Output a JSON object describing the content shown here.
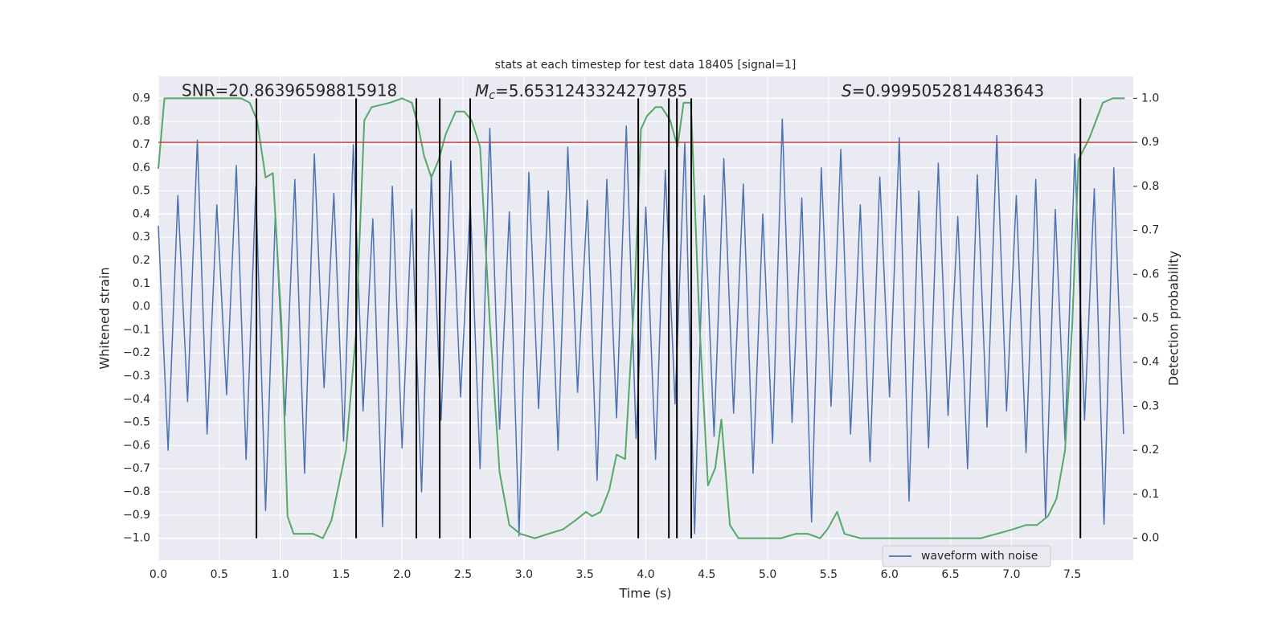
{
  "chart_data": {
    "type": "line",
    "title": "stats at each timestep for test data 18405 [signal=1]",
    "xlabel": "Time (s)",
    "ylabel": "Whitened strain",
    "y2label": "Detection probability",
    "annotations": [
      {
        "text": "SNR=20.86396598815918"
      },
      {
        "symbol": "M",
        "subscript": "c",
        "text": "=5.6531243324279785"
      },
      {
        "symbol": "S",
        "text": "=0.9995052814483643"
      }
    ],
    "xlim": [
      0,
      8
    ],
    "ylim": [
      -1.095,
      0.995
    ],
    "y2lim": [
      -0.05,
      1.05
    ],
    "xticks": [
      {
        "value": 0,
        "label": "0.0"
      },
      {
        "value": 0.5,
        "label": "0.5"
      },
      {
        "value": 1,
        "label": "1.0"
      },
      {
        "value": 1.5,
        "label": "1.5"
      },
      {
        "value": 2,
        "label": "2.0"
      },
      {
        "value": 2.5,
        "label": "2.5"
      },
      {
        "value": 3,
        "label": "3.0"
      },
      {
        "value": 3.5,
        "label": "3.5"
      },
      {
        "value": 4,
        "label": "4.0"
      },
      {
        "value": 4.5,
        "label": "4.5"
      },
      {
        "value": 5,
        "label": "5.0"
      },
      {
        "value": 5.5,
        "label": "5.5"
      },
      {
        "value": 6,
        "label": "6.0"
      },
      {
        "value": 6.5,
        "label": "6.5"
      },
      {
        "value": 7,
        "label": "7.0"
      },
      {
        "value": 7.5,
        "label": "7.5"
      }
    ],
    "yticks": [
      {
        "value": -1.0,
        "label": "−1.0"
      },
      {
        "value": -0.9,
        "label": "−0.9"
      },
      {
        "value": -0.8,
        "label": "−0.8"
      },
      {
        "value": -0.7,
        "label": "−0.7"
      },
      {
        "value": -0.6,
        "label": "−0.6"
      },
      {
        "value": -0.5,
        "label": "−0.5"
      },
      {
        "value": -0.4,
        "label": "−0.4"
      },
      {
        "value": -0.3,
        "label": "−0.3"
      },
      {
        "value": -0.2,
        "label": "−0.2"
      },
      {
        "value": -0.1,
        "label": "−0.1"
      },
      {
        "value": 0,
        "label": "0.0"
      },
      {
        "value": 0.1,
        "label": "0.1"
      },
      {
        "value": 0.2,
        "label": "0.2"
      },
      {
        "value": 0.3,
        "label": "0.3"
      },
      {
        "value": 0.4,
        "label": "0.4"
      },
      {
        "value": 0.5,
        "label": "0.5"
      },
      {
        "value": 0.6,
        "label": "0.6"
      },
      {
        "value": 0.7,
        "label": "0.7"
      },
      {
        "value": 0.8,
        "label": "0.8"
      },
      {
        "value": 0.9,
        "label": "0.9"
      }
    ],
    "y2ticks": [
      {
        "value": 0,
        "label": "0.0"
      },
      {
        "value": 0.1,
        "label": "0.1"
      },
      {
        "value": 0.2,
        "label": "0.2"
      },
      {
        "value": 0.3,
        "label": "0.3"
      },
      {
        "value": 0.4,
        "label": "0.4"
      },
      {
        "value": 0.5,
        "label": "0.5"
      },
      {
        "value": 0.6,
        "label": "0.6"
      },
      {
        "value": 0.7,
        "label": "0.7"
      },
      {
        "value": 0.8,
        "label": "0.8"
      },
      {
        "value": 0.9,
        "label": "0.9"
      },
      {
        "value": 1,
        "label": "1.0"
      }
    ],
    "grid": true,
    "legend": "lower right",
    "series": [
      {
        "name": "waveform with noise",
        "color": "#4c72b0",
        "x": [
          0,
          0.08,
          0.16,
          0.24,
          0.32,
          0.4,
          0.48,
          0.56,
          0.64,
          0.72,
          0.8,
          0.88,
          0.96,
          1.04,
          1.12,
          1.2,
          1.28,
          1.36,
          1.44,
          1.52,
          1.6,
          1.68,
          1.76,
          1.84,
          1.92,
          2,
          2.08,
          2.16,
          2.24,
          2.32,
          2.4,
          2.48,
          2.56,
          2.64,
          2.72,
          2.8,
          2.88,
          2.96,
          3.04,
          3.12,
          3.2,
          3.28,
          3.36,
          3.44,
          3.52,
          3.6,
          3.68,
          3.76,
          3.84,
          3.92,
          4,
          4.08,
          4.16,
          4.24,
          4.32,
          4.4,
          4.48,
          4.56,
          4.64,
          4.72,
          4.8,
          4.88,
          4.96,
          5.04,
          5.12,
          5.2,
          5.28,
          5.36,
          5.44,
          5.52,
          5.6,
          5.68,
          5.76,
          5.84,
          5.92,
          6,
          6.08,
          6.16,
          6.24,
          6.32,
          6.4,
          6.48,
          6.56,
          6.64,
          6.72,
          6.8,
          6.88,
          6.96,
          7.04,
          7.12,
          7.2,
          7.28,
          7.36,
          7.44,
          7.52,
          7.6,
          7.68,
          7.76,
          7.84,
          7.92
        ],
        "values": [
          0.35,
          -0.62,
          0.48,
          -0.41,
          0.72,
          -0.55,
          0.44,
          -0.38,
          0.61,
          -0.66,
          0.52,
          -0.88,
          0.4,
          -0.47,
          0.55,
          -0.72,
          0.66,
          -0.35,
          0.49,
          -0.58,
          0.7,
          -0.45,
          0.38,
          -0.95,
          0.52,
          -0.61,
          0.42,
          -0.8,
          0.57,
          -0.49,
          0.63,
          -0.39,
          0.45,
          -0.7,
          0.77,
          -0.53,
          0.41,
          -0.99,
          0.58,
          -0.44,
          0.5,
          -0.62,
          0.69,
          -0.37,
          0.46,
          -0.75,
          0.55,
          -0.48,
          0.78,
          -0.57,
          0.43,
          -0.66,
          0.59,
          -0.42,
          0.71,
          -0.98,
          0.48,
          -0.56,
          0.64,
          -0.46,
          0.53,
          -0.72,
          0.4,
          -0.59,
          0.81,
          -0.5,
          0.47,
          -0.93,
          0.6,
          -0.43,
          0.68,
          -0.55,
          0.44,
          -0.67,
          0.56,
          -0.39,
          0.73,
          -0.84,
          0.5,
          -0.61,
          0.62,
          -0.47,
          0.39,
          -0.7,
          0.57,
          -0.52,
          0.74,
          -0.45,
          0.48,
          -0.63,
          0.55,
          -0.91,
          0.42,
          -0.58,
          0.66,
          -0.49,
          0.51,
          -0.94,
          0.6,
          -0.55
        ]
      },
      {
        "color": "#55a868",
        "axis": "y2",
        "x": [
          0,
          0.05,
          0.12,
          0.68,
          0.75,
          0.81,
          0.88,
          0.94,
          1.01,
          1.06,
          1.11,
          1.19,
          1.27,
          1.35,
          1.42,
          1.54,
          1.62,
          1.69,
          1.75,
          1.9,
          2.0,
          2.08,
          2.13,
          2.18,
          2.24,
          2.3,
          2.36,
          2.44,
          2.51,
          2.57,
          2.64,
          2.72,
          2.8,
          2.88,
          2.97,
          3.09,
          3.2,
          3.32,
          3.42,
          3.51,
          3.56,
          3.63,
          3.7,
          3.76,
          3.83,
          3.91,
          3.96,
          4.01,
          4.08,
          4.13,
          4.2,
          4.26,
          4.31,
          4.37,
          4.44,
          4.51,
          4.57,
          4.62,
          4.69,
          4.76,
          4.87,
          5.0,
          5.11,
          5.23,
          5.33,
          5.43,
          5.49,
          5.57,
          5.63,
          5.76,
          5.96,
          6.22,
          6.48,
          6.75,
          6.88,
          7.01,
          7.12,
          7.21,
          7.3,
          7.37,
          7.44,
          7.5,
          7.55,
          7.64,
          7.75,
          7.83,
          7.93
        ],
        "values": [
          0.84,
          1.0,
          1.0,
          1.0,
          0.99,
          0.95,
          0.82,
          0.83,
          0.49,
          0.05,
          0.01,
          0.01,
          0.01,
          0.0,
          0.04,
          0.2,
          0.46,
          0.95,
          0.98,
          0.99,
          1.0,
          0.99,
          0.94,
          0.87,
          0.82,
          0.86,
          0.92,
          0.97,
          0.97,
          0.95,
          0.89,
          0.49,
          0.15,
          0.03,
          0.01,
          0.0,
          0.01,
          0.02,
          0.04,
          0.06,
          0.05,
          0.06,
          0.11,
          0.19,
          0.18,
          0.57,
          0.93,
          0.96,
          0.98,
          0.98,
          0.95,
          0.89,
          0.99,
          0.99,
          0.49,
          0.12,
          0.16,
          0.27,
          0.03,
          0.0,
          0.0,
          0.0,
          0.0,
          0.01,
          0.01,
          0.0,
          0.02,
          0.06,
          0.01,
          0.0,
          0.0,
          0.0,
          0.0,
          0.0,
          0.01,
          0.02,
          0.03,
          0.03,
          0.05,
          0.09,
          0.2,
          0.49,
          0.86,
          0.91,
          0.99,
          1.0,
          1.0
        ]
      }
    ],
    "hlines": [
      {
        "y2": 0.9,
        "color": "#c44e52"
      }
    ],
    "vlines": {
      "x": [
        0.805,
        1.623,
        2.117,
        2.309,
        2.559,
        3.938,
        4.189,
        4.255,
        4.373,
        7.566
      ],
      "ymin": -1.0,
      "ymax": 0.9,
      "color": "#000000"
    }
  }
}
